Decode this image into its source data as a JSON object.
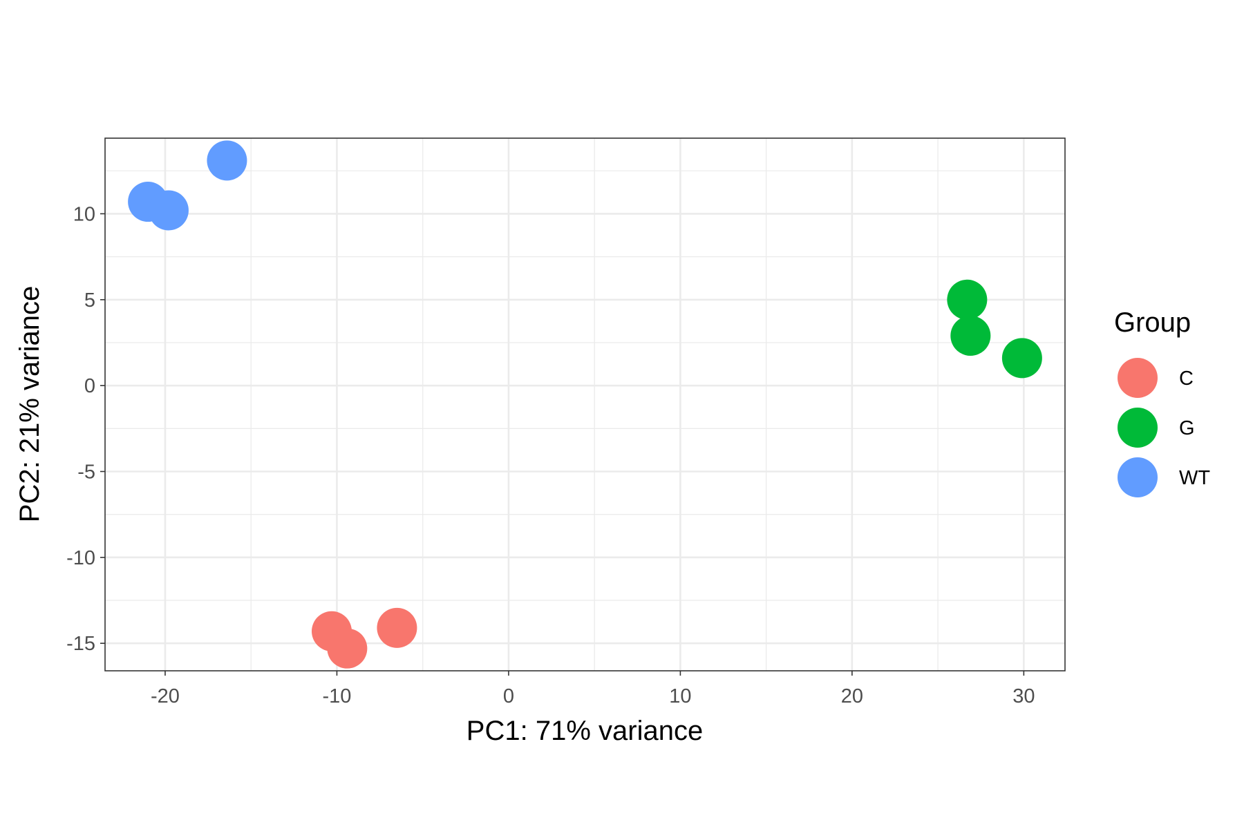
{
  "chart_data": {
    "type": "scatter",
    "title": "",
    "xlabel": "PC1: 71% variance",
    "ylabel": "PC2: 21% variance",
    "xlim": [
      -23.5,
      32.4
    ],
    "ylim": [
      -16.6,
      14.4
    ],
    "x_ticks": [
      -20,
      -10,
      0,
      10,
      20,
      30
    ],
    "y_ticks": [
      -15,
      -10,
      -5,
      0,
      5,
      10
    ],
    "x_tick_labels": [
      "-20",
      "-10",
      "0",
      "10",
      "20",
      "30"
    ],
    "y_tick_labels": [
      "-15",
      "-10",
      "-5",
      "0",
      "5",
      "10"
    ],
    "grid": true,
    "legend": {
      "title": "Group",
      "placement": "right"
    },
    "series": [
      {
        "name": "C",
        "color": "#F8766D",
        "points": [
          {
            "x": -10.3,
            "y": -14.3
          },
          {
            "x": -9.4,
            "y": -15.3
          },
          {
            "x": -6.5,
            "y": -14.1
          }
        ]
      },
      {
        "name": "G",
        "color": "#00BA38",
        "points": [
          {
            "x": 26.7,
            "y": 5.0
          },
          {
            "x": 26.9,
            "y": 2.9
          },
          {
            "x": 29.9,
            "y": 1.6
          }
        ]
      },
      {
        "name": "WT",
        "color": "#619CFF",
        "points": [
          {
            "x": -21.0,
            "y": 10.7
          },
          {
            "x": -19.8,
            "y": 10.2
          },
          {
            "x": -16.4,
            "y": 13.1
          }
        ]
      }
    ]
  }
}
